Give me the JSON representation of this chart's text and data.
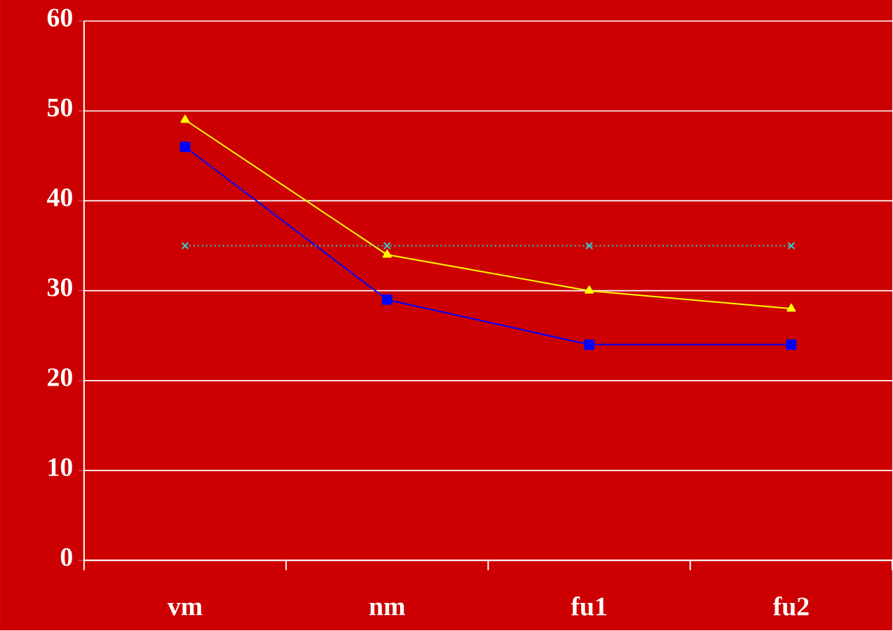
{
  "chart_data": {
    "type": "line",
    "categories": [
      "vm",
      "nm",
      "fu1",
      "fu2"
    ],
    "series": [
      {
        "color": "#ffff00",
        "values": [
          49,
          34,
          30,
          28
        ],
        "marker": "triangle",
        "line_style": "solid"
      },
      {
        "color": "#0000ff",
        "values": [
          46,
          29,
          24,
          24
        ],
        "marker": "square",
        "line_style": "solid"
      },
      {
        "color": "#33cccc",
        "values": [
          35,
          35,
          35,
          35
        ],
        "marker": "cross",
        "line_style": "dotted"
      }
    ],
    "ylim": [
      0,
      60
    ],
    "yticks": [
      0,
      10,
      20,
      30,
      40,
      50,
      60
    ],
    "grid": "y"
  }
}
